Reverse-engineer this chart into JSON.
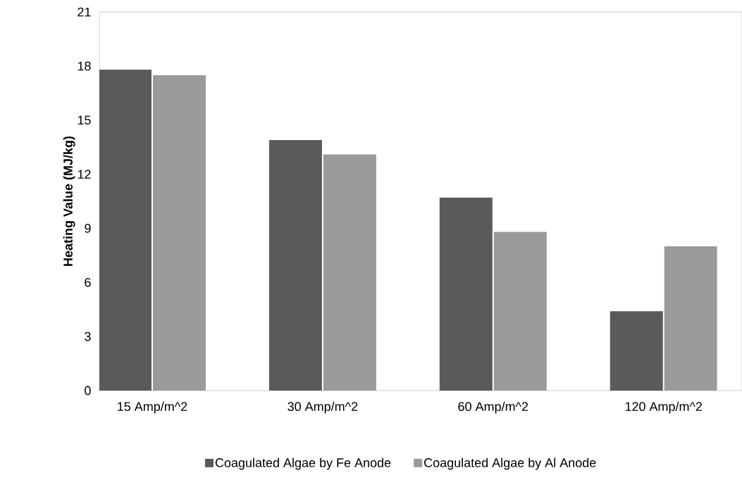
{
  "chart_data": {
    "type": "bar",
    "ylabel": "Heating Value (MJ/kg)",
    "categories": [
      "15 Amp/m^2",
      "30 Amp/m^2",
      "60 Amp/m^2",
      "120 Amp/m^2"
    ],
    "series": [
      {
        "name": "Coagulated Algae by Fe Anode",
        "color": "#5a5a5a",
        "values": [
          17.8,
          13.9,
          10.7,
          4.4
        ]
      },
      {
        "name": "Coagulated Algae by Al Anode",
        "color": "#9a9a9a",
        "values": [
          17.5,
          13.1,
          8.8,
          8.0
        ]
      }
    ],
    "ylim": [
      0,
      21
    ],
    "yticks": [
      0,
      3,
      6,
      9,
      12,
      15,
      18,
      21
    ],
    "grid": false,
    "legend": "bottom"
  }
}
